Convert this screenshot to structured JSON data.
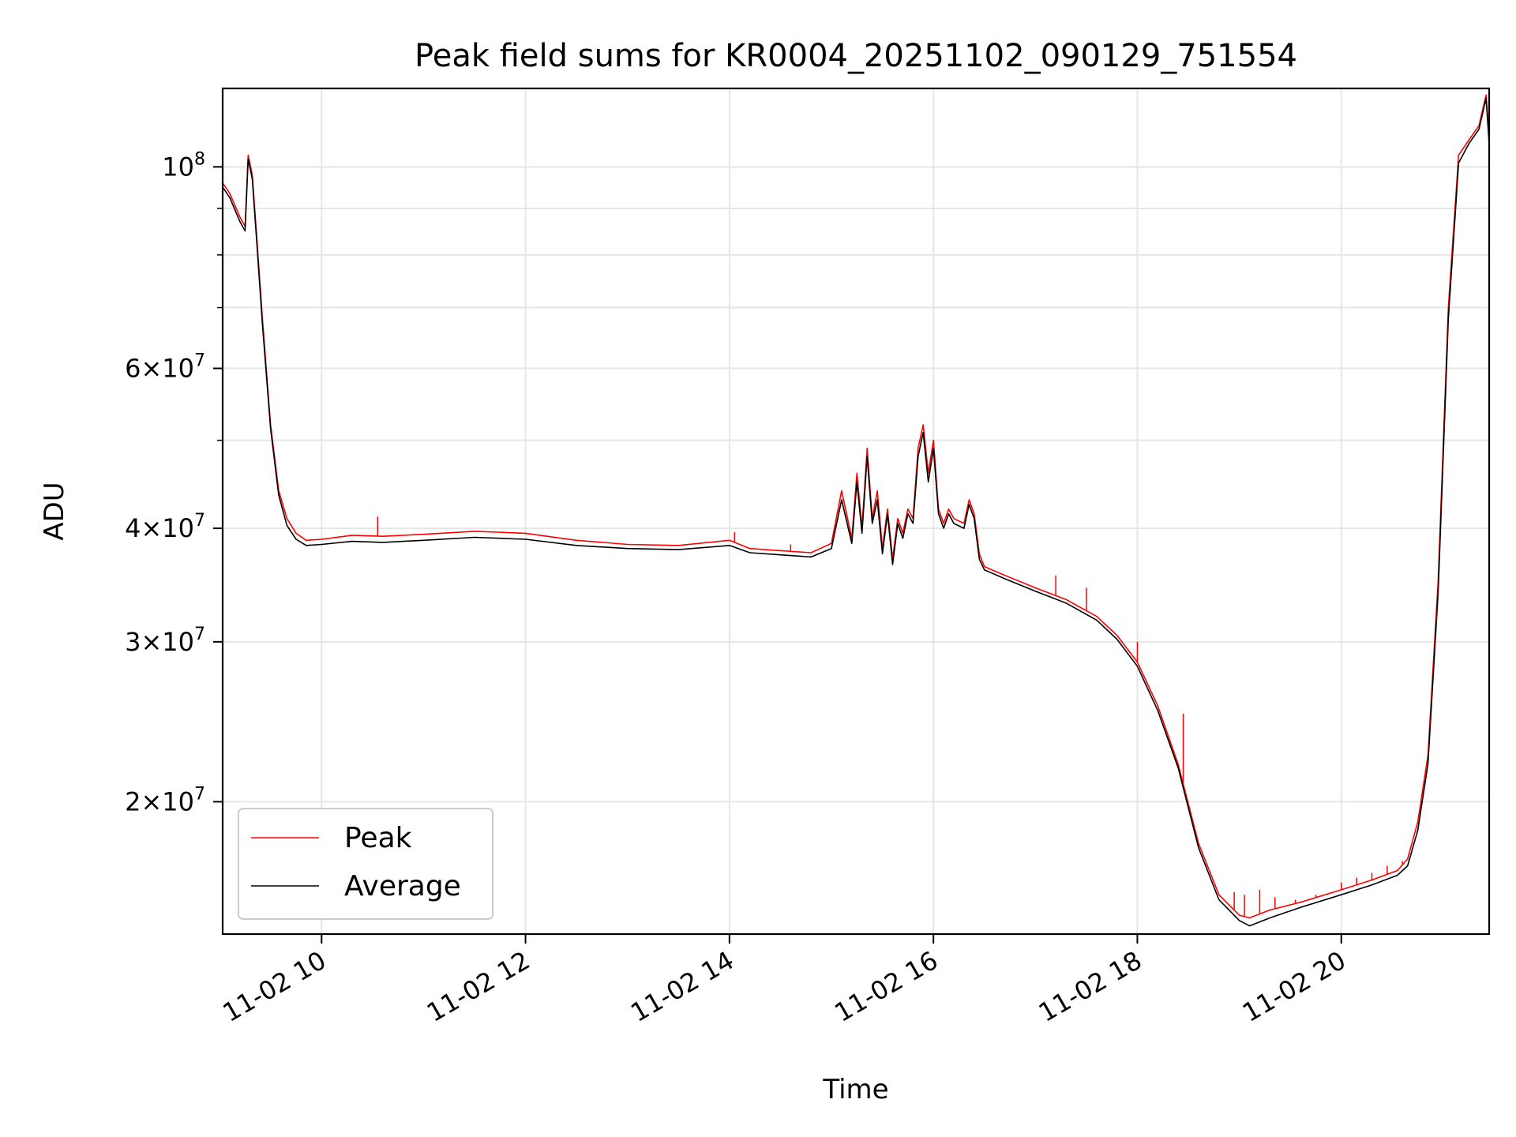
{
  "chart_data": {
    "type": "line",
    "title": "Peak field sums for KR0004_20251102_090129_751554",
    "xlabel": "Time",
    "ylabel": "ADU",
    "yscale": "log",
    "xlim_hours": [
      9.03,
      21.45
    ],
    "ylim": [
      14300000,
      122000000
    ],
    "grid": true,
    "legend_position": "lower-left",
    "x_ticks": [
      {
        "value": 10,
        "label": "11-02 10"
      },
      {
        "value": 12,
        "label": "11-02 12"
      },
      {
        "value": 14,
        "label": "11-02 14"
      },
      {
        "value": 16,
        "label": "11-02 16"
      },
      {
        "value": 18,
        "label": "11-02 18"
      },
      {
        "value": 20,
        "label": "11-02 20"
      }
    ],
    "y_major_ticks": [
      {
        "value": 20000000,
        "mantissa": "2",
        "exp": "7"
      },
      {
        "value": 30000000,
        "mantissa": "3",
        "exp": "7"
      },
      {
        "value": 40000000,
        "mantissa": "4",
        "exp": "7"
      },
      {
        "value": 60000000,
        "mantissa": "6",
        "exp": "7"
      },
      {
        "value": 100000000,
        "mantissa": "",
        "exp": "8"
      }
    ],
    "y_minor_gridlines": [
      50000000,
      70000000,
      80000000,
      90000000
    ],
    "series": [
      {
        "name": "Peak",
        "color": "#ff0000",
        "x_hours": [
          9.03,
          9.1,
          9.2,
          9.25,
          9.28,
          9.32,
          9.36,
          9.42,
          9.5,
          9.58,
          9.66,
          9.75,
          9.85,
          10.0,
          10.3,
          10.6,
          11.0,
          11.5,
          12.0,
          12.5,
          13.0,
          13.5,
          14.0,
          14.2,
          14.5,
          14.8,
          15.0,
          15.1,
          15.2,
          15.25,
          15.3,
          15.35,
          15.4,
          15.45,
          15.5,
          15.55,
          15.6,
          15.65,
          15.7,
          15.75,
          15.8,
          15.85,
          15.9,
          15.95,
          16.0,
          16.05,
          16.1,
          16.15,
          16.2,
          16.3,
          16.35,
          16.4,
          16.45,
          16.5,
          16.7,
          17.0,
          17.3,
          17.6,
          17.8,
          18.0,
          18.2,
          18.4,
          18.6,
          18.8,
          19.0,
          19.1,
          19.3,
          19.6,
          20.0,
          20.3,
          20.55,
          20.65,
          20.75,
          20.85,
          20.95,
          21.05,
          21.15,
          21.25,
          21.35,
          21.42,
          21.45
        ],
        "values": [
          96000000,
          93500000,
          88000000,
          86000000,
          103000000,
          98000000,
          85000000,
          68000000,
          52000000,
          44000000,
          41000000,
          39500000,
          38800000,
          38900000,
          39300000,
          39200000,
          39400000,
          39700000,
          39500000,
          38800000,
          38400000,
          38300000,
          38800000,
          38000000,
          37800000,
          37600000,
          38500000,
          44000000,
          39000000,
          46000000,
          40000000,
          49000000,
          41000000,
          44000000,
          38000000,
          42000000,
          37000000,
          41000000,
          39500000,
          42000000,
          41000000,
          49000000,
          52000000,
          46000000,
          50000000,
          42000000,
          40500000,
          42000000,
          41000000,
          40500000,
          43000000,
          41500000,
          37500000,
          36300000,
          35500000,
          34400000,
          33400000,
          32000000,
          30500000,
          28500000,
          25500000,
          22000000,
          18000000,
          15800000,
          15000000,
          14900000,
          15200000,
          15500000,
          16000000,
          16400000,
          16800000,
          17300000,
          19000000,
          22500000,
          35000000,
          70000000,
          103000000,
          107000000,
          111000000,
          120000000,
          108000000
        ],
        "spikes": [
          [
            10.55,
            41200000
          ],
          [
            14.05,
            39600000
          ],
          [
            14.6,
            38400000
          ],
          [
            17.2,
            35500000
          ],
          [
            17.5,
            34400000
          ],
          [
            18.0,
            30000000
          ],
          [
            18.45,
            25000000
          ],
          [
            18.95,
            15900000
          ],
          [
            19.05,
            15800000
          ],
          [
            19.2,
            16000000
          ],
          [
            19.35,
            15700000
          ],
          [
            19.55,
            15600000
          ],
          [
            19.75,
            15800000
          ],
          [
            20.0,
            16300000
          ],
          [
            20.15,
            16500000
          ],
          [
            20.3,
            16700000
          ],
          [
            20.45,
            17000000
          ],
          [
            20.6,
            17200000
          ]
        ]
      },
      {
        "name": "Average",
        "color": "#000000",
        "x_hours": [
          9.03,
          9.1,
          9.2,
          9.25,
          9.28,
          9.32,
          9.36,
          9.42,
          9.5,
          9.58,
          9.66,
          9.75,
          9.85,
          10.0,
          10.3,
          10.6,
          11.0,
          11.5,
          12.0,
          12.5,
          13.0,
          13.5,
          14.0,
          14.2,
          14.5,
          14.8,
          15.0,
          15.1,
          15.2,
          15.25,
          15.3,
          15.35,
          15.4,
          15.45,
          15.5,
          15.55,
          15.6,
          15.65,
          15.7,
          15.75,
          15.8,
          15.85,
          15.9,
          15.95,
          16.0,
          16.05,
          16.1,
          16.15,
          16.2,
          16.3,
          16.35,
          16.4,
          16.45,
          16.5,
          16.7,
          17.0,
          17.3,
          17.6,
          17.8,
          18.0,
          18.2,
          18.4,
          18.6,
          18.8,
          19.0,
          19.1,
          19.3,
          19.6,
          20.0,
          20.3,
          20.55,
          20.65,
          20.75,
          20.85,
          20.95,
          21.05,
          21.15,
          21.25,
          21.35,
          21.42,
          21.45
        ],
        "values": [
          95000000,
          92500000,
          87000000,
          85000000,
          102000000,
          97000000,
          84000000,
          67000000,
          51500000,
          43500000,
          40300000,
          38900000,
          38300000,
          38400000,
          38700000,
          38600000,
          38800000,
          39100000,
          38900000,
          38300000,
          38000000,
          37900000,
          38300000,
          37600000,
          37400000,
          37200000,
          38000000,
          43000000,
          38500000,
          45000000,
          39500000,
          48000000,
          40500000,
          43000000,
          37500000,
          41500000,
          36500000,
          40500000,
          39000000,
          41500000,
          40500000,
          48000000,
          51000000,
          45000000,
          49000000,
          41500000,
          40000000,
          41500000,
          40500000,
          40000000,
          42500000,
          41000000,
          37000000,
          36000000,
          35200000,
          34100000,
          33100000,
          31700000,
          30200000,
          28200000,
          25200000,
          21800000,
          17800000,
          15600000,
          14800000,
          14600000,
          14900000,
          15300000,
          15800000,
          16200000,
          16600000,
          17000000,
          18600000,
          22000000,
          34000000,
          68000000,
          101000000,
          106000000,
          110000000,
          119000000,
          106000000
        ]
      }
    ]
  }
}
